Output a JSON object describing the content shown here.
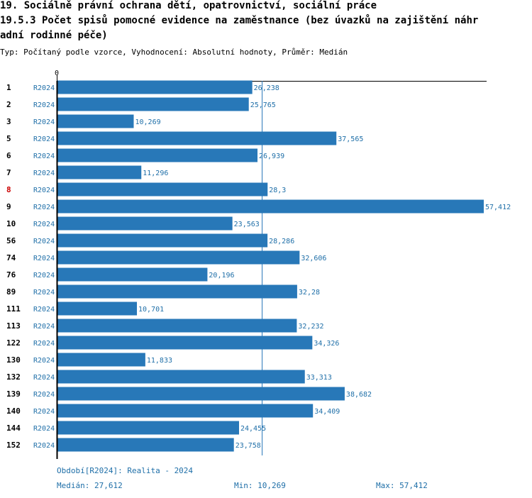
{
  "header": {
    "line1": "19. Sociálně právní ochrana dětí, opatrovnictví, sociální práce",
    "line2": "19.5.3 Počet spisů pomocné evidence na zaměstnance  (bez úvazků na zajištění náhr",
    "line3": "adní rodinné péče)",
    "subtitle": "Typ: Počítaný podle vzorce, Vyhodnocení: Absolutní hodnoty, Průměr: Medián"
  },
  "colors": {
    "bar": "#2878b8",
    "text": "#1f6fa8",
    "highlight": "#cc0000",
    "axis": "#000000"
  },
  "chart_data": {
    "type": "bar",
    "orientation": "horizontal",
    "axis_zero_label": "0",
    "xlim": [
      0,
      57.412
    ],
    "median": 27.612,
    "highlight_category": "8",
    "categories": [
      "1",
      "2",
      "3",
      "5",
      "6",
      "7",
      "8",
      "9",
      "10",
      "56",
      "74",
      "76",
      "89",
      "111",
      "113",
      "122",
      "130",
      "132",
      "139",
      "140",
      "144",
      "152"
    ],
    "series_labels": [
      "R2024",
      "R2024",
      "R2024",
      "R2024",
      "R2024",
      "R2024",
      "R2024",
      "R2024",
      "R2024",
      "R2024",
      "R2024",
      "R2024",
      "R2024",
      "R2024",
      "R2024",
      "R2024",
      "R2024",
      "R2024",
      "R2024",
      "R2024",
      "R2024",
      "R2024"
    ],
    "values": [
      26.238,
      25.765,
      10.269,
      37.565,
      26.939,
      11.296,
      28.3,
      57.412,
      23.563,
      28.286,
      32.606,
      20.196,
      32.28,
      10.701,
      32.232,
      34.326,
      11.833,
      33.313,
      38.682,
      34.409,
      24.455,
      23.758
    ],
    "value_labels": [
      "26,238",
      "25,765",
      "10,269",
      "37,565",
      "26,939",
      "11,296",
      "28,3",
      "57,412",
      "23,563",
      "28,286",
      "32,606",
      "20,196",
      "32,28",
      "10,701",
      "32,232",
      "34,326",
      "11,833",
      "33,313",
      "38,682",
      "34,409",
      "24,455",
      "23,758"
    ]
  },
  "footer": {
    "period": "Období[R2024]: Realita - 2024",
    "median": "Medián: 27,612",
    "min": "Min: 10,269",
    "max": "Max: 57,412"
  }
}
